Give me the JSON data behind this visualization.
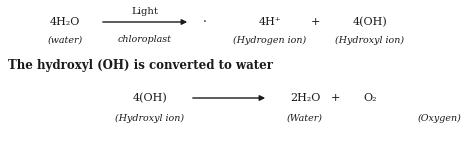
{
  "bg_color": "#ffffff",
  "text_color": "#1a1a1a",
  "line1": {
    "eq_left": "4H₂O",
    "eq_left_sub": "(water)",
    "arrow_label_top": "Light",
    "arrow_label_bot": "chloroplast",
    "dot": "·",
    "eq_right1": "4H⁺",
    "eq_right1_sub": "(Hydrogen ion)",
    "plus1": "+",
    "eq_right2": "4(OH)",
    "eq_right2_sub": "(Hydroxyl ion)"
  },
  "line2": "The hydroxyl (OH) is converted to water",
  "line3": {
    "eq_left": "4(OH)",
    "eq_left_sub": "(Hydroxyl ion)",
    "eq_right1": "2H₂O",
    "plus1": "+",
    "eq_right2": "O₂",
    "sub_water": "(Water)",
    "sub_oxygen": "(Oxygen)"
  }
}
